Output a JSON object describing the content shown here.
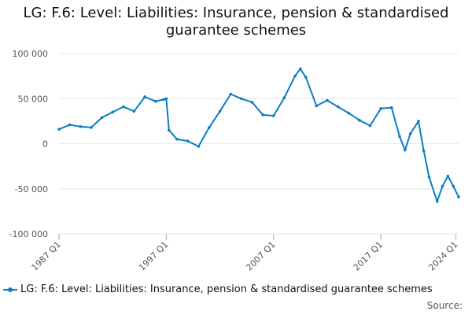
{
  "chart_data": {
    "type": "line",
    "title": "LG: F.6: Level: Liabilities: Insurance, pension & standardised\nguarantee schemes",
    "xlabel": "",
    "ylabel": "",
    "ylim": [
      -100000,
      100000
    ],
    "yticks": [
      100000,
      50000,
      0,
      -50000,
      -100000
    ],
    "ytick_labels": [
      "100 000",
      "50 000",
      "0",
      "-50 000",
      "-100 000"
    ],
    "xticks": [
      "1987 Q1",
      "1997 Q1",
      "2007 Q1",
      "2017 Q1",
      "2024 Q1"
    ],
    "grid": "horizontal",
    "legend_position": "bottom",
    "series": [
      {
        "name": "LG: F.6: Level: Liabilities: Insurance, pension & standardised guarantee schemes",
        "color": "#0a7ec2",
        "x": [
          1987,
          1988,
          1989,
          1990,
          1991,
          1992,
          1993,
          1994,
          1995,
          1996,
          1996.75,
          1997,
          1997.25,
          1998,
          1999,
          2000,
          2001,
          2002,
          2003,
          2004,
          2005,
          2006,
          2007,
          2008,
          2009,
          2009.5,
          2010,
          2011,
          2012,
          2013,
          2014,
          2015,
          2016,
          2017,
          2018,
          2018.75,
          2019.25,
          2019.75,
          2020.5,
          2021,
          2021.5,
          2022.25,
          2022.75,
          2023.25,
          2023.75,
          2024.25
        ],
        "values": [
          16000,
          21000,
          19000,
          18000,
          29000,
          35000,
          41000,
          36000,
          52000,
          47000,
          49000,
          50000,
          15000,
          5000,
          3000,
          -3000,
          18000,
          36000,
          55000,
          50000,
          46000,
          32000,
          31000,
          51000,
          75000,
          83000,
          74000,
          42000,
          48000,
          41000,
          34000,
          26000,
          20000,
          39000,
          40000,
          8000,
          -7000,
          11000,
          25000,
          -8000,
          -37000,
          -64000,
          -47000,
          -36000,
          -47000,
          -59000
        ]
      }
    ]
  },
  "legend": {
    "label": "LG: F.6: Level: Liabilities: Insurance, pension & standardised guarantee schemes"
  },
  "source_label": "Source:"
}
